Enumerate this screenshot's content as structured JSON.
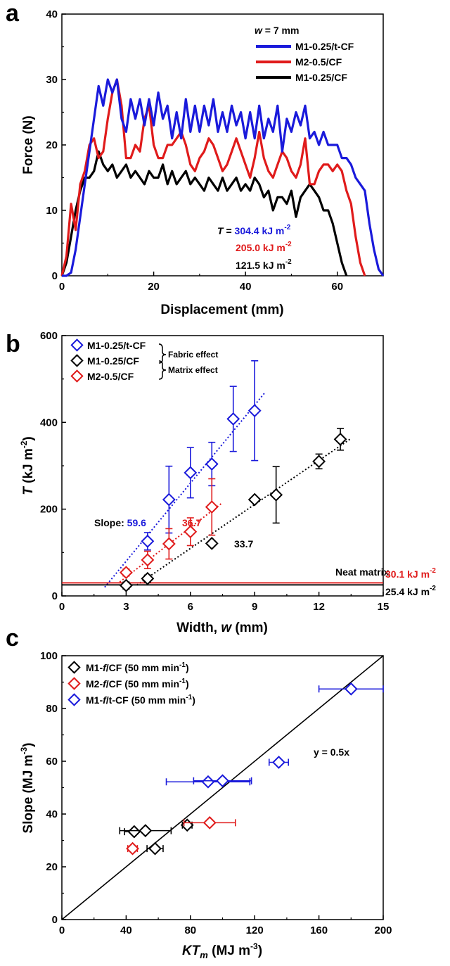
{
  "chart_data": [
    {
      "panel_label": "a",
      "type": "line",
      "xlabel": "Displacement (mm)",
      "ylabel": "Force (N)",
      "xlim": [
        0,
        70
      ],
      "ylim": [
        0,
        40
      ],
      "xticks": [
        "0",
        "20",
        "40",
        "60"
      ],
      "yticks": [
        "0",
        "10",
        "20",
        "30",
        "40"
      ],
      "legend_title": "w = 7 mm",
      "legend_placement": "top-right",
      "series": [
        {
          "name": "M1-0.25/t-CF",
          "color": "#1a1adb",
          "x": [
            0,
            1,
            2,
            3,
            4,
            5,
            6,
            7,
            8,
            9,
            10,
            11,
            12,
            13,
            14,
            15,
            16,
            17,
            18,
            19,
            20,
            21,
            22,
            23,
            24,
            25,
            26,
            27,
            28,
            29,
            30,
            31,
            32,
            33,
            34,
            35,
            36,
            37,
            38,
            39,
            40,
            41,
            42,
            43,
            44,
            45,
            46,
            47,
            48,
            49,
            50,
            51,
            52,
            53,
            54,
            55,
            56,
            57,
            58,
            59,
            60,
            61,
            62,
            63,
            64,
            65,
            66,
            67,
            68,
            69,
            70
          ],
          "y": [
            0,
            0,
            0.5,
            4,
            9,
            14,
            19,
            24,
            29,
            26,
            30,
            28,
            30,
            24,
            22,
            27,
            24,
            27,
            23,
            27,
            23,
            28,
            24,
            26,
            21,
            25,
            21,
            27,
            22,
            26,
            22,
            26,
            23,
            27,
            22,
            25,
            22,
            26,
            23,
            25,
            21,
            25,
            21,
            26,
            21,
            24,
            22,
            26,
            19,
            24,
            22,
            25,
            23,
            26,
            21,
            22,
            20,
            22,
            20,
            20,
            20,
            18,
            18,
            17,
            15,
            14,
            13,
            8,
            4,
            1,
            0
          ]
        },
        {
          "name": "M2-0.5/CF",
          "color": "#e01b1b",
          "x": [
            0,
            1,
            2,
            3,
            4,
            5,
            6,
            7,
            8,
            9,
            10,
            11,
            12,
            13,
            14,
            15,
            16,
            17,
            18,
            19,
            20,
            21,
            22,
            23,
            24,
            25,
            26,
            27,
            28,
            29,
            30,
            31,
            32,
            33,
            34,
            35,
            36,
            37,
            38,
            39,
            40,
            41,
            42,
            43,
            44,
            45,
            46,
            47,
            48,
            49,
            50,
            51,
            52,
            53,
            54,
            55,
            56,
            57,
            58,
            59,
            60,
            61,
            62,
            63,
            64,
            65,
            66
          ],
          "y": [
            0,
            3,
            11,
            7,
            14,
            16,
            20,
            21,
            18,
            19,
            24,
            28,
            30,
            26,
            18,
            18,
            20,
            19,
            24,
            26,
            20,
            18,
            18,
            20,
            20,
            21,
            22,
            20,
            17,
            16,
            18,
            19,
            21,
            20,
            18,
            16,
            17,
            19,
            21,
            19,
            17,
            15,
            18,
            22,
            18,
            16,
            15,
            17,
            19,
            18,
            16,
            15,
            17,
            21,
            14,
            14,
            16,
            17,
            17,
            16,
            17,
            16,
            13,
            11,
            6,
            2,
            0
          ]
        },
        {
          "name": "M1-0.25/CF",
          "color": "#000000",
          "x": [
            0,
            1,
            2,
            3,
            4,
            5,
            6,
            7,
            8,
            9,
            10,
            11,
            12,
            13,
            14,
            15,
            16,
            17,
            18,
            19,
            20,
            21,
            22,
            23,
            24,
            25,
            26,
            27,
            28,
            29,
            30,
            31,
            32,
            33,
            34,
            35,
            36,
            37,
            38,
            39,
            40,
            41,
            42,
            43,
            44,
            45,
            46,
            47,
            48,
            49,
            50,
            51,
            52,
            53,
            54,
            55,
            56,
            57,
            58,
            59,
            60,
            61,
            62
          ],
          "y": [
            0,
            2,
            6,
            10,
            13,
            15,
            15,
            16,
            19,
            17,
            16,
            17,
            15,
            16,
            17,
            15,
            16,
            15,
            14,
            16,
            15,
            15,
            17,
            14,
            16,
            14,
            15,
            16,
            14,
            15,
            14,
            13,
            15,
            14,
            13,
            15,
            13,
            14,
            15,
            13,
            14,
            13,
            15,
            14,
            12,
            13,
            10,
            12,
            12,
            11,
            13,
            9,
            12,
            13,
            14,
            13,
            12,
            10,
            10,
            8,
            5,
            2,
            0
          ]
        }
      ],
      "annotations": [
        {
          "text_prefix": "T = ",
          "text": "304.4 kJ m",
          "sup": "-2",
          "color": "#1a1adb"
        },
        {
          "text": "205.0 kJ m",
          "sup": "-2",
          "color": "#e01b1b"
        },
        {
          "text": "121.5 kJ m",
          "sup": "-2",
          "color": "#000000"
        }
      ]
    },
    {
      "panel_label": "b",
      "type": "scatter",
      "xlabel": "Width, w (mm)",
      "ylabel": "T (kJ m-2)",
      "xlim": [
        0,
        15
      ],
      "ylim": [
        0,
        600
      ],
      "xticks": [
        "0",
        "3",
        "6",
        "9",
        "12",
        "15"
      ],
      "yticks": [
        "0",
        "200",
        "400",
        "600"
      ],
      "legend_placement": "top-left",
      "series": [
        {
          "name": "M1-0.25/t-CF",
          "color": "#1a1adb",
          "x": [
            4,
            5,
            6,
            7,
            8,
            9
          ],
          "y": [
            126,
            222,
            284,
            304,
            408,
            427
          ],
          "yerr": [
            20,
            77,
            58,
            50,
            75,
            115
          ],
          "slope": "59.6",
          "fit_x": [
            2.0,
            9.5
          ],
          "fit_y": [
            20,
            470
          ]
        },
        {
          "name": "M1-0.25/CF",
          "color": "#000000",
          "x": [
            3,
            4,
            7,
            9,
            10,
            12,
            13
          ],
          "y": [
            24,
            40,
            121,
            222,
            233,
            310,
            361
          ],
          "yerr": [
            8,
            8,
            5,
            5,
            65,
            17,
            25
          ],
          "slope": "33.7",
          "fit_x": [
            3.5,
            13.5
          ],
          "fit_y": [
            25,
            363
          ]
        },
        {
          "name": "M2-0.5/CF",
          "color": "#e01b1b",
          "x": [
            3,
            4,
            5,
            6,
            7
          ],
          "y": [
            54,
            83,
            120,
            148,
            205
          ],
          "yerr": [
            8,
            20,
            35,
            32,
            65
          ],
          "slope": "36.7",
          "fit_x": [
            2.7,
            7.5
          ],
          "fit_y": [
            32,
            215
          ]
        }
      ],
      "brackets": [
        "Fabric effect",
        "Matrix effect"
      ],
      "hlines": [
        {
          "y": 30.1,
          "label": "30.1 kJ m",
          "sup": "-2",
          "color": "#e01b1b"
        },
        {
          "y": 25.4,
          "label": "25.4 kJ m",
          "sup": "-2",
          "color": "#000000"
        }
      ],
      "hline_title": "Neat matrix",
      "slope_prefix": "Slope: "
    },
    {
      "panel_label": "c",
      "type": "scatter",
      "xlabel": "KTm (MJ m-3)",
      "ylabel": "Slope (MJ m-3)",
      "xlim": [
        0,
        200
      ],
      "ylim": [
        0,
        100
      ],
      "xticks": [
        "0",
        "40",
        "80",
        "120",
        "160",
        "200"
      ],
      "yticks": [
        "0",
        "20",
        "40",
        "60",
        "80",
        "100"
      ],
      "legend_placement": "top-left",
      "series": [
        {
          "name": "M1-f/CF (50 mm min-1)",
          "color": "#000000",
          "x": [
            45,
            52,
            58,
            78
          ],
          "y": [
            33.3,
            33.7,
            26.9,
            35.8
          ],
          "xerr": [
            6,
            16,
            5,
            3
          ]
        },
        {
          "name": "M2-f/CF (50 mm min-1)",
          "color": "#e01b1b",
          "x": [
            44,
            92
          ],
          "y": [
            26.9,
            36.7
          ],
          "xerr": [
            3,
            16
          ]
        },
        {
          "name": "M1-f/t-CF (50 mm min-1)",
          "color": "#1a1adb",
          "x": [
            91,
            100,
            135,
            180
          ],
          "y": [
            52.2,
            52.6,
            59.6,
            87.4
          ],
          "xerr": [
            26,
            18,
            6,
            20
          ]
        }
      ],
      "fit_label": "y = 0.5x",
      "fit_x": [
        0,
        200
      ],
      "fit_y": [
        0,
        100
      ]
    }
  ]
}
